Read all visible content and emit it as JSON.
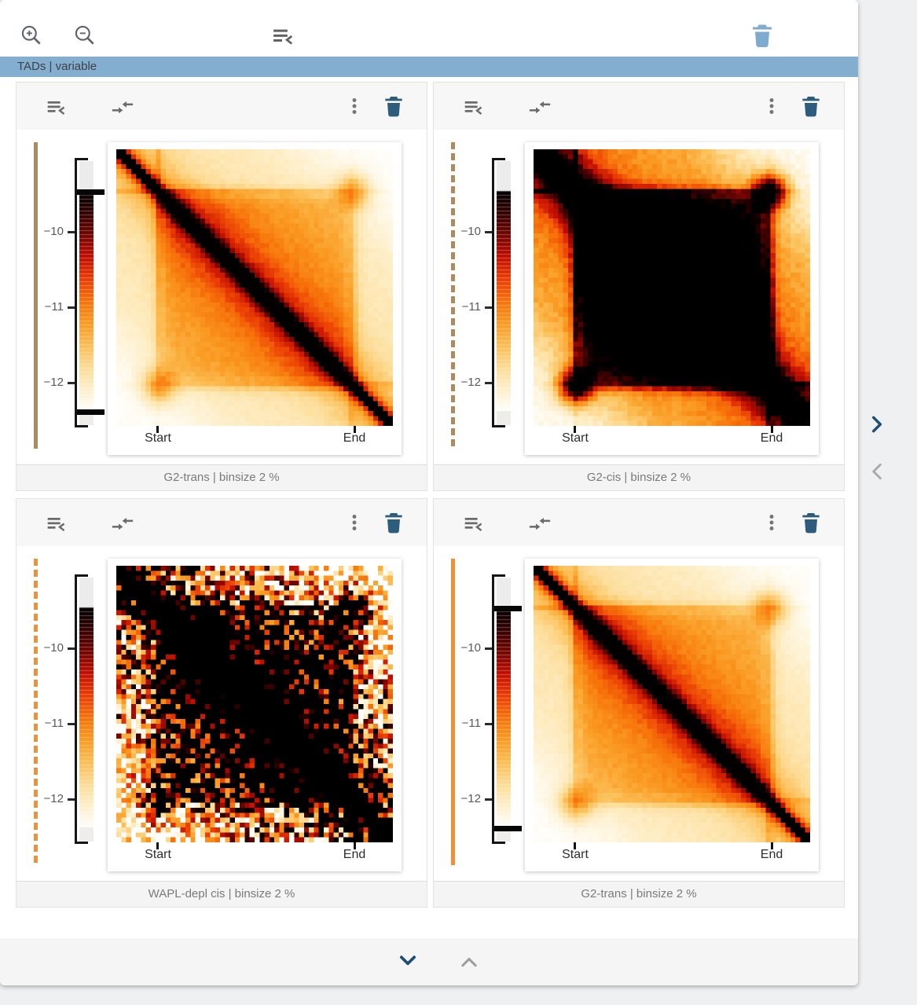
{
  "colors": {
    "header_blue": "#84aecf",
    "panel_trash_blue": "#2d5c7c",
    "toolbar_trash_blue": "#7fabcf",
    "icon_gray": "#6b6b6b",
    "nav_active_blue": "#1d4e74",
    "nav_inactive_gray": "#9e9e9e",
    "indicator_tan": "#aa8c5f",
    "indicator_orange": "#ee9138"
  },
  "top_toolbar": {
    "zoom_in_icon": "magnify-plus-icon",
    "zoom_out_icon": "magnify-minus-icon",
    "collapse_icon": "playlist-collapse-icon",
    "delete_icon": "trash-icon"
  },
  "collection_bar": {
    "label": "TADs | variable"
  },
  "panels": [
    {
      "caption": "G2-trans | binsize 2 %",
      "axis": {
        "x_ticks": [
          "Start",
          "End"
        ],
        "colorbar_ticks": [
          "−10",
          "−11",
          "−12"
        ]
      },
      "indicator": {
        "color": "#aa8c5f",
        "style": "solid"
      },
      "colorbar": {
        "markers": true,
        "scale_top": "-9.6",
        "scale_bottom": "-12.6"
      },
      "heatmap": {
        "type": "heatmap",
        "pattern": "tad-average-diagonal",
        "gain": 1.0,
        "noise": 0.035,
        "seed": 11
      }
    },
    {
      "caption": "G2-cis | binsize 2 %",
      "axis": {
        "x_ticks": [
          "Start",
          "End"
        ],
        "colorbar_ticks": [
          "−10",
          "−11",
          "−12"
        ]
      },
      "indicator": {
        "color": "#aa8c5f",
        "style": "dashed"
      },
      "colorbar": {
        "markers": false,
        "scale_top": "-9.6",
        "scale_bottom": "-12.6"
      },
      "heatmap": {
        "type": "heatmap",
        "pattern": "tad-average-saturated",
        "gain": 2.9,
        "noise": 0.035,
        "seed": 23
      }
    },
    {
      "caption": "WAPL-depl cis | binsize 2 %",
      "axis": {
        "x_ticks": [
          "Start",
          "End"
        ],
        "colorbar_ticks": [
          "−10",
          "−11",
          "−12"
        ]
      },
      "indicator": {
        "color": "#ee9138",
        "style": "dashed"
      },
      "colorbar": {
        "markers": false,
        "scale_top": "-9.6",
        "scale_bottom": "-12.6"
      },
      "heatmap": {
        "type": "heatmap",
        "pattern": "tad-average-saturated-noisy",
        "gain": 3.3,
        "noise": 0.45,
        "seed": 37
      }
    },
    {
      "caption": "G2-trans | binsize 2 %",
      "axis": {
        "x_ticks": [
          "Start",
          "End"
        ],
        "colorbar_ticks": [
          "−10",
          "−11",
          "−12"
        ]
      },
      "indicator": {
        "color": "#ee9138",
        "style": "solid"
      },
      "colorbar": {
        "markers": true,
        "scale_top": "-9.6",
        "scale_bottom": "-12.6"
      },
      "heatmap": {
        "type": "heatmap",
        "pattern": "tad-average-diagonal",
        "gain": 1.0,
        "noise": 0.035,
        "seed": 49
      }
    }
  ],
  "pager": {
    "down_icon": "chevron-down-icon",
    "up_icon": "chevron-up-icon"
  },
  "side_nav": {
    "next_icon": "chevron-right-icon",
    "prev_icon": "chevron-left-icon"
  }
}
